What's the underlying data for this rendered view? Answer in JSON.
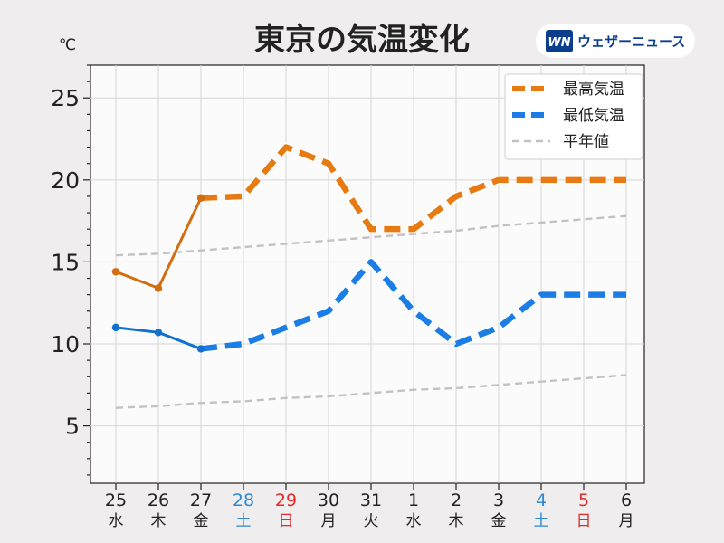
{
  "brand": {
    "name": "ウェザーニュース",
    "logo_letters": "WN"
  },
  "chart_data": {
    "type": "line",
    "title": "東京の気温変化",
    "ylabel": "℃",
    "ylim": [
      1.5,
      27
    ],
    "yticks": [
      "5",
      "10",
      "15",
      "20",
      "25"
    ],
    "categories": [
      {
        "day": "25",
        "weekday": "水"
      },
      {
        "day": "26",
        "weekday": "木"
      },
      {
        "day": "27",
        "weekday": "金"
      },
      {
        "day": "28",
        "weekday": "土"
      },
      {
        "day": "29",
        "weekday": "日"
      },
      {
        "day": "30",
        "weekday": "月"
      },
      {
        "day": "31",
        "weekday": "火"
      },
      {
        "day": "1",
        "weekday": "水"
      },
      {
        "day": "2",
        "weekday": "木"
      },
      {
        "day": "3",
        "weekday": "金"
      },
      {
        "day": "4",
        "weekday": "土"
      },
      {
        "day": "5",
        "weekday": "日"
      },
      {
        "day": "6",
        "weekday": "月"
      }
    ],
    "series": [
      {
        "name": "最高気温",
        "color": "#e77b12",
        "observed": [
          14.4,
          13.4,
          18.9
        ],
        "forecast": [
          18.9,
          19.0,
          22.0,
          21.0,
          17.0,
          17.0,
          19.0,
          20.0,
          20.0,
          20.0,
          20.0
        ]
      },
      {
        "name": "最低気温",
        "color": "#1a7ee6",
        "observed": [
          11.0,
          10.7,
          9.7
        ],
        "forecast": [
          9.7,
          10.0,
          11.0,
          12.0,
          15.0,
          12.0,
          10.0,
          11.0,
          13.0,
          13.0,
          13.0
        ]
      },
      {
        "name": "平年値",
        "color": "#c2c2c2",
        "upper": [
          15.4,
          15.5,
          15.7,
          15.9,
          16.1,
          16.3,
          16.5,
          16.7,
          16.9,
          17.2,
          17.4,
          17.6,
          17.8
        ],
        "lower": [
          6.1,
          6.2,
          6.4,
          6.5,
          6.7,
          6.8,
          7.0,
          7.2,
          7.3,
          7.5,
          7.7,
          7.9,
          8.1
        ]
      }
    ],
    "weekday_colors": {
      "weekday": "#222222",
      "saturday": "#2c8ad6",
      "sunday": "#e02b2b"
    },
    "grid": true,
    "legend_position": "top-right"
  }
}
